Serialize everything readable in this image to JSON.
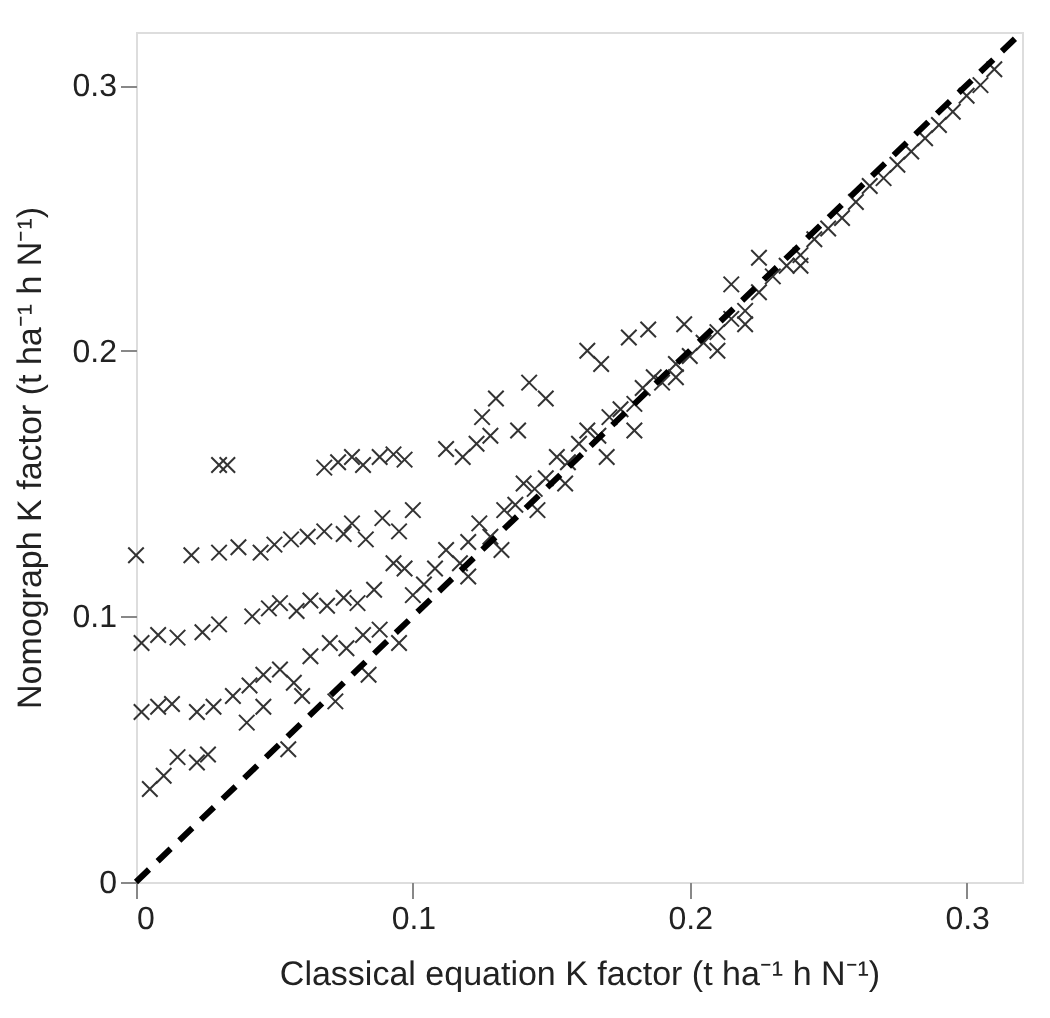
{
  "chart_data": {
    "type": "scatter",
    "xlabel": "Classical equation K factor (t ha⁻¹ h N⁻¹)",
    "ylabel": "Nomograph K factor (t ha⁻¹ h N⁻¹)",
    "xlim": [
      0,
      0.32
    ],
    "ylim": [
      0,
      0.32
    ],
    "xticks": [
      0,
      0.1,
      0.2,
      0.3
    ],
    "yticks": [
      0,
      0.1,
      0.2,
      0.3
    ],
    "grid": false,
    "marker": "cross",
    "series": [
      {
        "color": "#333333",
        "x": [
          0.0,
          0.02,
          0.03,
          0.037,
          0.045,
          0.05,
          0.056,
          0.062,
          0.068,
          0.075,
          0.078,
          0.083,
          0.089,
          0.095,
          0.1,
          0.03,
          0.033,
          0.068,
          0.073,
          0.078,
          0.082,
          0.088,
          0.093,
          0.097,
          0.112,
          0.118,
          0.123,
          0.128,
          0.002,
          0.008,
          0.015,
          0.024,
          0.03,
          0.042,
          0.048,
          0.052,
          0.058,
          0.063,
          0.069,
          0.075,
          0.08,
          0.086,
          0.093,
          0.097,
          0.002,
          0.008,
          0.013,
          0.022,
          0.028,
          0.035,
          0.041,
          0.046,
          0.052,
          0.057,
          0.063,
          0.07,
          0.076,
          0.082,
          0.088,
          0.095,
          0.084,
          0.005,
          0.01,
          0.015,
          0.022,
          0.026,
          0.055,
          0.04,
          0.046,
          0.06,
          0.072,
          0.1,
          0.104,
          0.108,
          0.112,
          0.117,
          0.12,
          0.124,
          0.128,
          0.133,
          0.137,
          0.14,
          0.144,
          0.148,
          0.152,
          0.156,
          0.16,
          0.163,
          0.167,
          0.171,
          0.175,
          0.18,
          0.183,
          0.187,
          0.19,
          0.195,
          0.2,
          0.205,
          0.21,
          0.215,
          0.22,
          0.225,
          0.23,
          0.235,
          0.24,
          0.245,
          0.25,
          0.255,
          0.26,
          0.265,
          0.27,
          0.275,
          0.28,
          0.285,
          0.29,
          0.295,
          0.3,
          0.305,
          0.31,
          0.125,
          0.13,
          0.138,
          0.142,
          0.148,
          0.163,
          0.168,
          0.178,
          0.185,
          0.198,
          0.215,
          0.225,
          0.12,
          0.132,
          0.145,
          0.155,
          0.17,
          0.18,
          0.195,
          0.21,
          0.22,
          0.24
        ],
        "values": [
          0.123,
          0.123,
          0.124,
          0.126,
          0.124,
          0.127,
          0.129,
          0.13,
          0.132,
          0.131,
          0.135,
          0.129,
          0.137,
          0.132,
          0.14,
          0.157,
          0.157,
          0.156,
          0.158,
          0.16,
          0.157,
          0.16,
          0.161,
          0.159,
          0.163,
          0.16,
          0.165,
          0.168,
          0.09,
          0.093,
          0.092,
          0.094,
          0.097,
          0.1,
          0.103,
          0.105,
          0.102,
          0.106,
          0.104,
          0.107,
          0.105,
          0.11,
          0.12,
          0.118,
          0.064,
          0.066,
          0.067,
          0.064,
          0.066,
          0.07,
          0.074,
          0.078,
          0.08,
          0.075,
          0.085,
          0.09,
          0.088,
          0.093,
          0.095,
          0.09,
          0.078,
          0.035,
          0.04,
          0.047,
          0.045,
          0.048,
          0.05,
          0.06,
          0.066,
          0.07,
          0.068,
          0.108,
          0.112,
          0.118,
          0.125,
          0.12,
          0.128,
          0.135,
          0.13,
          0.14,
          0.142,
          0.15,
          0.148,
          0.152,
          0.16,
          0.158,
          0.165,
          0.17,
          0.168,
          0.175,
          0.178,
          0.18,
          0.186,
          0.19,
          0.188,
          0.195,
          0.198,
          0.203,
          0.207,
          0.212,
          0.215,
          0.222,
          0.228,
          0.232,
          0.236,
          0.242,
          0.246,
          0.25,
          0.256,
          0.262,
          0.265,
          0.27,
          0.275,
          0.28,
          0.285,
          0.29,
          0.296,
          0.3,
          0.306,
          0.175,
          0.182,
          0.17,
          0.188,
          0.182,
          0.2,
          0.195,
          0.205,
          0.208,
          0.21,
          0.225,
          0.235,
          0.115,
          0.125,
          0.14,
          0.15,
          0.16,
          0.17,
          0.19,
          0.2,
          0.21,
          0.232
        ]
      },
      {
        "color": "#000000",
        "type": "line",
        "line_style": "dashed",
        "marker": "none",
        "x": [
          0,
          0.32
        ],
        "values": [
          0,
          0.32
        ]
      }
    ]
  }
}
